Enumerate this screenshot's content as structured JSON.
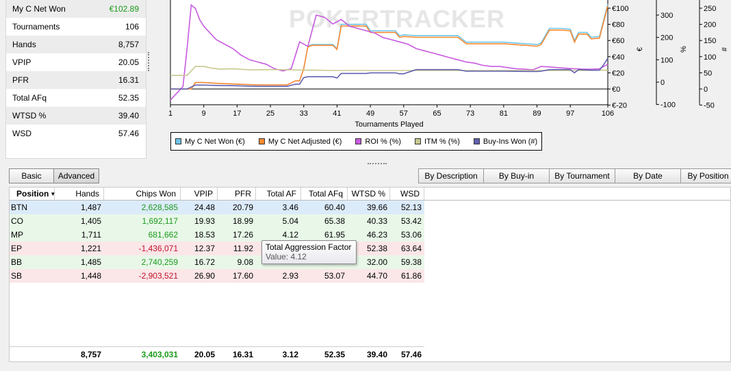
{
  "stats_panel": [
    {
      "label": "My C Net Won",
      "value": "€102.89",
      "color": "#1a9a1a"
    },
    {
      "label": "Tournaments",
      "value": "106"
    },
    {
      "label": "Hands",
      "value": "8,757"
    },
    {
      "label": "VPIP",
      "value": "20.05"
    },
    {
      "label": "PFR",
      "value": "16.31"
    },
    {
      "label": "Total AFq",
      "value": "52.35"
    },
    {
      "label": "WTSD %",
      "value": "39.40"
    },
    {
      "label": "WSD",
      "value": "57.46"
    }
  ],
  "chart": {
    "watermark": "POKERTRACKER",
    "xlabel": "Tournaments Played",
    "x_ticks": [
      "1",
      "9",
      "17",
      "25",
      "33",
      "41",
      "49",
      "57",
      "65",
      "73",
      "81",
      "89",
      "97",
      "106"
    ],
    "euro_ticks": [
      "€100",
      "€80",
      "€60",
      "€40",
      "€20",
      "€0",
      "€-20"
    ],
    "pct_ticks": [
      "300",
      "200",
      "100",
      "0",
      "-100"
    ],
    "num_ticks": [
      "250",
      "200",
      "150",
      "100",
      "50",
      "0",
      "-50"
    ],
    "axis_euro_label": "€",
    "axis_pct_label": "%",
    "axis_num_label": "#"
  },
  "chart_data": {
    "type": "line",
    "xlabel": "Tournaments Played",
    "xlim": [
      1,
      106
    ],
    "ylim_euro": [
      -20,
      100
    ],
    "ylim_pct": [
      -100,
      300
    ],
    "ylim_count": [
      -50,
      250
    ],
    "grid": false,
    "legend_position": "bottom",
    "series": [
      {
        "name": "My C Net Won (€)",
        "color": "#6ec4e8",
        "axis": "euro",
        "x": [
          1,
          3,
          5,
          6,
          7,
          9,
          12,
          17,
          22,
          23,
          25,
          29,
          31,
          32,
          33,
          34,
          35,
          40,
          41,
          42,
          48,
          49,
          55,
          56,
          57,
          60,
          65,
          70,
          72,
          81,
          89,
          90,
          92,
          95,
          97,
          98,
          99,
          101,
          102,
          104,
          105,
          106
        ],
        "y": [
          0,
          0,
          0,
          0,
          8,
          8,
          7,
          6,
          5,
          5,
          5,
          5,
          10,
          10,
          25,
          53,
          55,
          55,
          50,
          80,
          80,
          72,
          72,
          66,
          67,
          66,
          66,
          66,
          58,
          58,
          55,
          57,
          75,
          75,
          74,
          60,
          70,
          70,
          64,
          65,
          85,
          105
        ]
      },
      {
        "name": "My C Net Adjusted (€)",
        "color": "#ff8a30",
        "axis": "euro",
        "x": [
          1,
          3,
          5,
          6,
          7,
          9,
          12,
          17,
          22,
          23,
          25,
          29,
          31,
          32,
          33,
          34,
          35,
          40,
          41,
          42,
          48,
          49,
          55,
          56,
          57,
          60,
          65,
          70,
          72,
          81,
          89,
          90,
          92,
          95,
          97,
          98,
          99,
          101,
          102,
          104,
          105,
          106
        ],
        "y": [
          0,
          0,
          0,
          0,
          8,
          8,
          7,
          6,
          5,
          5,
          5,
          5,
          10,
          10,
          25,
          52,
          54,
          54,
          49,
          78,
          78,
          70,
          70,
          64,
          65,
          64,
          64,
          64,
          56,
          56,
          53,
          55,
          73,
          73,
          72,
          58,
          68,
          68,
          62,
          63,
          83,
          103
        ]
      },
      {
        "name": "ROI % (%)",
        "color": "#c85ae0",
        "axis": "pct",
        "x": [
          1,
          2,
          3,
          4,
          5,
          6,
          7,
          8,
          9,
          10,
          12,
          14,
          16,
          18,
          20,
          22,
          24,
          26,
          28,
          30,
          32,
          34,
          36,
          38,
          40,
          42,
          44,
          46,
          48,
          50,
          52,
          54,
          56,
          58,
          60,
          62,
          64,
          66,
          68,
          70,
          72,
          74,
          76,
          78,
          80,
          82,
          84,
          86,
          88,
          90,
          92,
          94,
          96,
          98,
          100,
          102,
          104,
          106
        ],
        "y": [
          -80,
          -60,
          -40,
          -20,
          150,
          345,
          330,
          280,
          250,
          230,
          190,
          170,
          150,
          120,
          100,
          90,
          80,
          60,
          50,
          60,
          180,
          160,
          300,
          290,
          260,
          280,
          250,
          240,
          230,
          220,
          200,
          190,
          180,
          170,
          150,
          140,
          130,
          120,
          110,
          100,
          90,
          85,
          75,
          70,
          70,
          65,
          60,
          58,
          55,
          70,
          68,
          65,
          62,
          60,
          58,
          58,
          60,
          80
        ]
      },
      {
        "name": "ITM % (%)",
        "color": "#c8c890",
        "axis": "pct",
        "x": [
          1,
          3,
          5,
          7,
          9,
          11,
          13,
          16,
          20,
          25,
          30,
          33,
          35,
          40,
          50,
          60,
          70,
          80,
          90,
          100,
          106
        ],
        "y": [
          30,
          30,
          30,
          70,
          70,
          62,
          58,
          60,
          55,
          56,
          55,
          54,
          54,
          52,
          52,
          52,
          52,
          52,
          52,
          52,
          54
        ]
      },
      {
        "name": "Buy-Ins Won (#)",
        "color": "#6060b0",
        "axis": "count",
        "x": [
          1,
          3,
          5,
          7,
          9,
          12,
          17,
          22,
          23,
          25,
          29,
          31,
          32,
          33,
          34,
          35,
          40,
          41,
          42,
          48,
          49,
          55,
          56,
          57,
          60,
          65,
          70,
          72,
          81,
          89,
          90,
          92,
          97,
          98,
          99,
          102,
          104,
          105,
          106
        ],
        "y": [
          0,
          0,
          0,
          12,
          12,
          11,
          10,
          8,
          8,
          8,
          8,
          15,
          15,
          35,
          38,
          38,
          38,
          34,
          48,
          48,
          50,
          50,
          47,
          47,
          60,
          60,
          60,
          55,
          55,
          54,
          55,
          60,
          60,
          50,
          60,
          58,
          58,
          75,
          95
        ]
      }
    ]
  },
  "legend": [
    {
      "label": "My C Net Won (€)",
      "color": "#6ec4e8"
    },
    {
      "label": "My C Net Adjusted (€)",
      "color": "#ff8a30"
    },
    {
      "label": "ROI % (%)",
      "color": "#c85ae0"
    },
    {
      "label": "ITM % (%)",
      "color": "#c8c890"
    },
    {
      "label": "Buy-Ins Won (#)",
      "color": "#6060b0"
    }
  ],
  "view_toggle": {
    "basic": "Basic",
    "advanced": "Advanced"
  },
  "group_tabs": [
    "By Description",
    "By Buy-in",
    "By Tournament",
    "By Date",
    "By Position"
  ],
  "table": {
    "columns": [
      "Position",
      "Hands",
      "Chips Won",
      "VPIP",
      "PFR",
      "Total AF",
      "Total AFq",
      "WTSD %",
      "WSD"
    ],
    "rows": [
      {
        "cells": [
          "BTN",
          "1,487",
          "2,628,585",
          "24.48",
          "20.79",
          "3.46",
          "60.40",
          "39.66",
          "52.13"
        ],
        "kind": "sel",
        "chips": "pos"
      },
      {
        "cells": [
          "CO",
          "1,405",
          "1,692,117",
          "19.93",
          "18.99",
          "5.04",
          "65.38",
          "40.33",
          "53.42"
        ],
        "kind": "win",
        "chips": "pos"
      },
      {
        "cells": [
          "MP",
          "1,711",
          "681,662",
          "18.53",
          "17.26",
          "4.12",
          "61.95",
          "46.23",
          "53.06"
        ],
        "kind": "win",
        "chips": "pos"
      },
      {
        "cells": [
          "EP",
          "1,221",
          "-1,436,071",
          "12.37",
          "11.92",
          "",
          "",
          "52.38",
          "63.64"
        ],
        "kind": "lose",
        "chips": "neg"
      },
      {
        "cells": [
          "BB",
          "1,485",
          "2,740,259",
          "16.72",
          "9.08",
          "",
          "",
          "32.00",
          "59.38"
        ],
        "kind": "win",
        "chips": "pos"
      },
      {
        "cells": [
          "SB",
          "1,448",
          "-2,903,521",
          "26.90",
          "17.60",
          "2.93",
          "53.07",
          "44.70",
          "61.86"
        ],
        "kind": "lose",
        "chips": "neg"
      }
    ],
    "totals": [
      "",
      "8,757",
      "3,403,031",
      "20.05",
      "16.31",
      "3.12",
      "52.35",
      "39.40",
      "57.46"
    ]
  },
  "tooltip": {
    "title": "Total Aggression Factor",
    "value": "Value: 4.12"
  }
}
